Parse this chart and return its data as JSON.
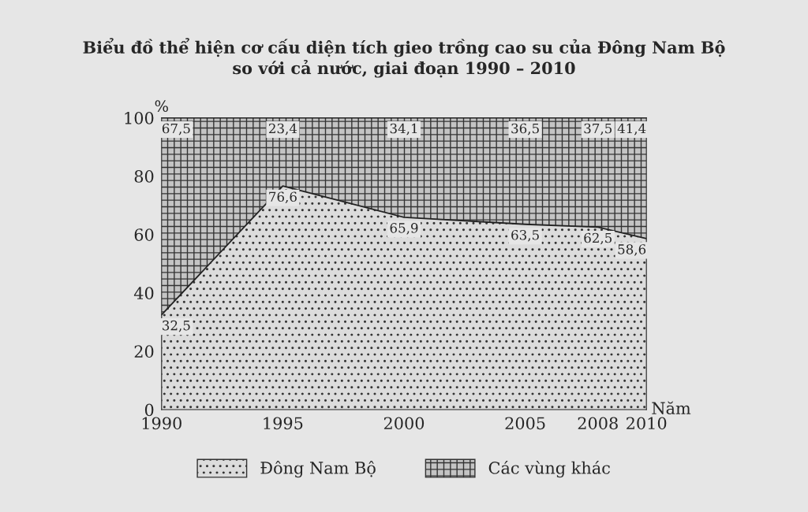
{
  "chart_data": {
    "type": "area",
    "stacked": true,
    "title": "Biểu đồ thể hiện cơ cấu diện tích gieo trồng cao su của Đông Nam Bộ\nso với cả nước, giai đoạn 1990 – 2010",
    "xlabel": "Năm",
    "ylabel": "%",
    "x": [
      1990,
      1995,
      2000,
      2005,
      2008,
      2010
    ],
    "series": [
      {
        "name": "Đông Nam Bộ",
        "color": "#dcdcdc",
        "values": [
          32.5,
          76.6,
          65.9,
          63.5,
          62.5,
          58.6
        ],
        "value_labels": [
          "32,5",
          "76,6",
          "65,9",
          "63,5",
          "62,5",
          "58,6"
        ]
      },
      {
        "name": "Các vùng khác",
        "color": "#c4c4c4",
        "values": [
          67.5,
          23.4,
          34.1,
          36.5,
          37.5,
          41.4
        ],
        "value_labels": [
          "67,5",
          "23,4",
          "34,1",
          "36,5",
          "37,5",
          "41,4"
        ]
      }
    ],
    "xlim": [
      1990,
      2010
    ],
    "xticks": [
      1990,
      1995,
      2000,
      2005,
      2008,
      2010
    ],
    "ylim": [
      0,
      100
    ],
    "yticks": [
      0,
      20,
      40,
      60,
      80,
      100
    ],
    "legend": "bottom"
  }
}
